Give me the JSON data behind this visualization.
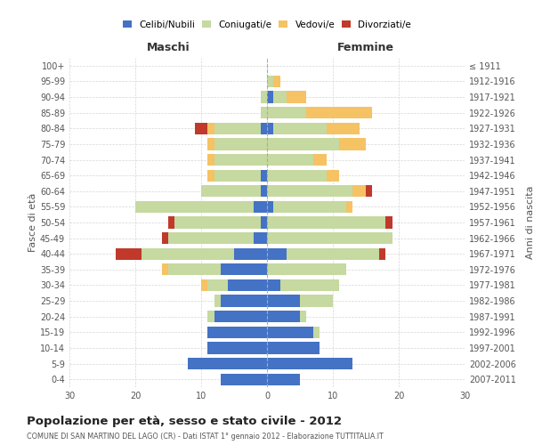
{
  "age_groups": [
    "0-4",
    "5-9",
    "10-14",
    "15-19",
    "20-24",
    "25-29",
    "30-34",
    "35-39",
    "40-44",
    "45-49",
    "50-54",
    "55-59",
    "60-64",
    "65-69",
    "70-74",
    "75-79",
    "80-84",
    "85-89",
    "90-94",
    "95-99",
    "100+"
  ],
  "birth_years": [
    "2007-2011",
    "2002-2006",
    "1997-2001",
    "1992-1996",
    "1987-1991",
    "1982-1986",
    "1977-1981",
    "1972-1976",
    "1967-1971",
    "1962-1966",
    "1957-1961",
    "1952-1956",
    "1947-1951",
    "1942-1946",
    "1937-1941",
    "1932-1936",
    "1927-1931",
    "1922-1926",
    "1917-1921",
    "1912-1916",
    "≤ 1911"
  ],
  "colors": {
    "celibi": "#4472C4",
    "coniugati": "#C5D9A0",
    "vedovi": "#F5C264",
    "divorziati": "#C0392B"
  },
  "maschi": {
    "celibi": [
      7,
      12,
      9,
      9,
      8,
      7,
      6,
      7,
      5,
      2,
      1,
      2,
      1,
      1,
      0,
      0,
      1,
      0,
      0,
      0,
      0
    ],
    "coniugati": [
      0,
      0,
      0,
      0,
      1,
      1,
      3,
      8,
      14,
      13,
      13,
      18,
      9,
      7,
      8,
      8,
      7,
      1,
      1,
      0,
      0
    ],
    "vedovi": [
      0,
      0,
      0,
      0,
      0,
      0,
      1,
      1,
      0,
      0,
      0,
      0,
      0,
      1,
      1,
      1,
      1,
      0,
      0,
      0,
      0
    ],
    "divorziati": [
      0,
      0,
      0,
      0,
      0,
      0,
      0,
      0,
      4,
      1,
      1,
      0,
      0,
      0,
      0,
      0,
      2,
      0,
      0,
      0,
      0
    ]
  },
  "femmine": {
    "celibi": [
      5,
      13,
      8,
      7,
      5,
      5,
      2,
      0,
      3,
      0,
      0,
      1,
      0,
      0,
      0,
      0,
      1,
      0,
      1,
      0,
      0
    ],
    "coniugati": [
      0,
      0,
      0,
      1,
      1,
      5,
      9,
      12,
      14,
      19,
      18,
      11,
      13,
      9,
      7,
      11,
      8,
      6,
      2,
      1,
      0
    ],
    "vedovi": [
      0,
      0,
      0,
      0,
      0,
      0,
      0,
      0,
      0,
      0,
      0,
      1,
      2,
      2,
      2,
      4,
      5,
      10,
      3,
      1,
      0
    ],
    "divorziati": [
      0,
      0,
      0,
      0,
      0,
      0,
      0,
      0,
      1,
      0,
      1,
      0,
      1,
      0,
      0,
      0,
      0,
      0,
      0,
      0,
      0
    ]
  },
  "xlim": 30,
  "title": "Popolazione per età, sesso e stato civile - 2012",
  "subtitle": "COMUNE DI SAN MARTINO DEL LAGO (CR) - Dati ISTAT 1° gennaio 2012 - Elaborazione TUTTITALIA.IT",
  "ylabel_left": "Fasce di età",
  "ylabel_right": "Anni di nascita",
  "xlabel_left": "Maschi",
  "xlabel_right": "Femmine",
  "bg_color": "#ffffff",
  "grid_color": "#cccccc"
}
